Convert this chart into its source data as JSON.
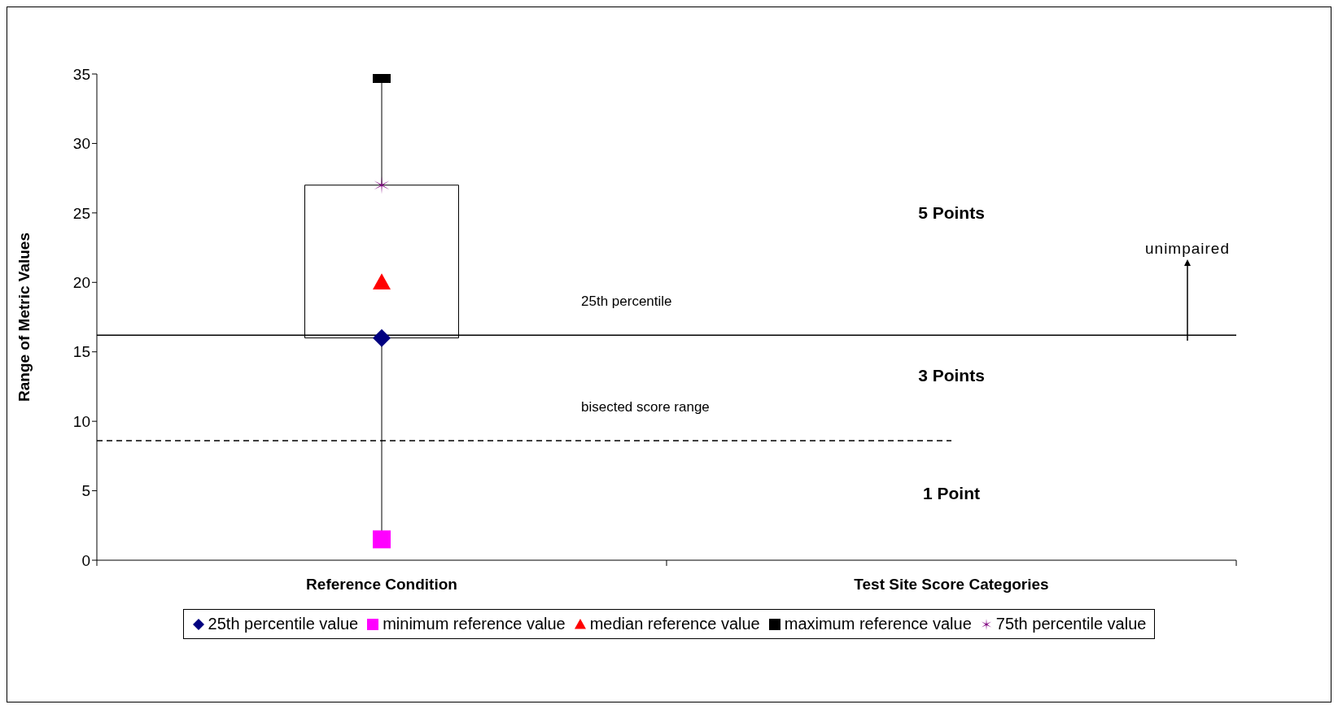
{
  "chart_data": {
    "type": "box",
    "ylabel": "Range of Metric Values",
    "categories": [
      "Reference Condition",
      "Test Site Score Categories"
    ],
    "boxes": [
      {
        "low": 1.5,
        "q1": 16,
        "q3": 27,
        "high": 35
      },
      null
    ],
    "series": [
      {
        "name": "25th percentile value",
        "type": "scatter",
        "color": "#000080",
        "marker": "diamond",
        "x": [
          "Reference Condition"
        ],
        "values": [
          16
        ]
      },
      {
        "name": "minimum reference value",
        "type": "scatter",
        "color": "#ff00ff",
        "marker": "square",
        "x": [
          "Reference Condition"
        ],
        "values": [
          1.5
        ]
      },
      {
        "name": "median reference value",
        "type": "scatter",
        "color": "#ff0000",
        "marker": "triangle",
        "x": [
          "Reference Condition"
        ],
        "values": [
          20
        ]
      },
      {
        "name": "maximum reference value",
        "type": "scatter",
        "color": "#000000",
        "marker": "square",
        "x": [
          "Reference Condition"
        ],
        "values": [
          35
        ]
      },
      {
        "name": "75th percentile value",
        "type": "scatter",
        "color": "#800080",
        "marker": "cross",
        "x": [
          "Reference Condition"
        ],
        "values": [
          27
        ]
      }
    ],
    "ylim": [
      0,
      35
    ],
    "yticks": [
      0,
      5,
      10,
      15,
      20,
      25,
      30,
      35
    ],
    "legend": "bottom",
    "ref_lines": [
      {
        "axis": "y",
        "value": 16.2,
        "label": "25th percentile",
        "color": "#000000",
        "line_style": "solid"
      },
      {
        "axis": "y",
        "value": 8.6,
        "label": "bisected score range",
        "color": "#000000",
        "line_style": "dashed"
      }
    ],
    "annotations": [
      "5 Points",
      "3 Points",
      "1 Point",
      "unimpaired"
    ]
  }
}
